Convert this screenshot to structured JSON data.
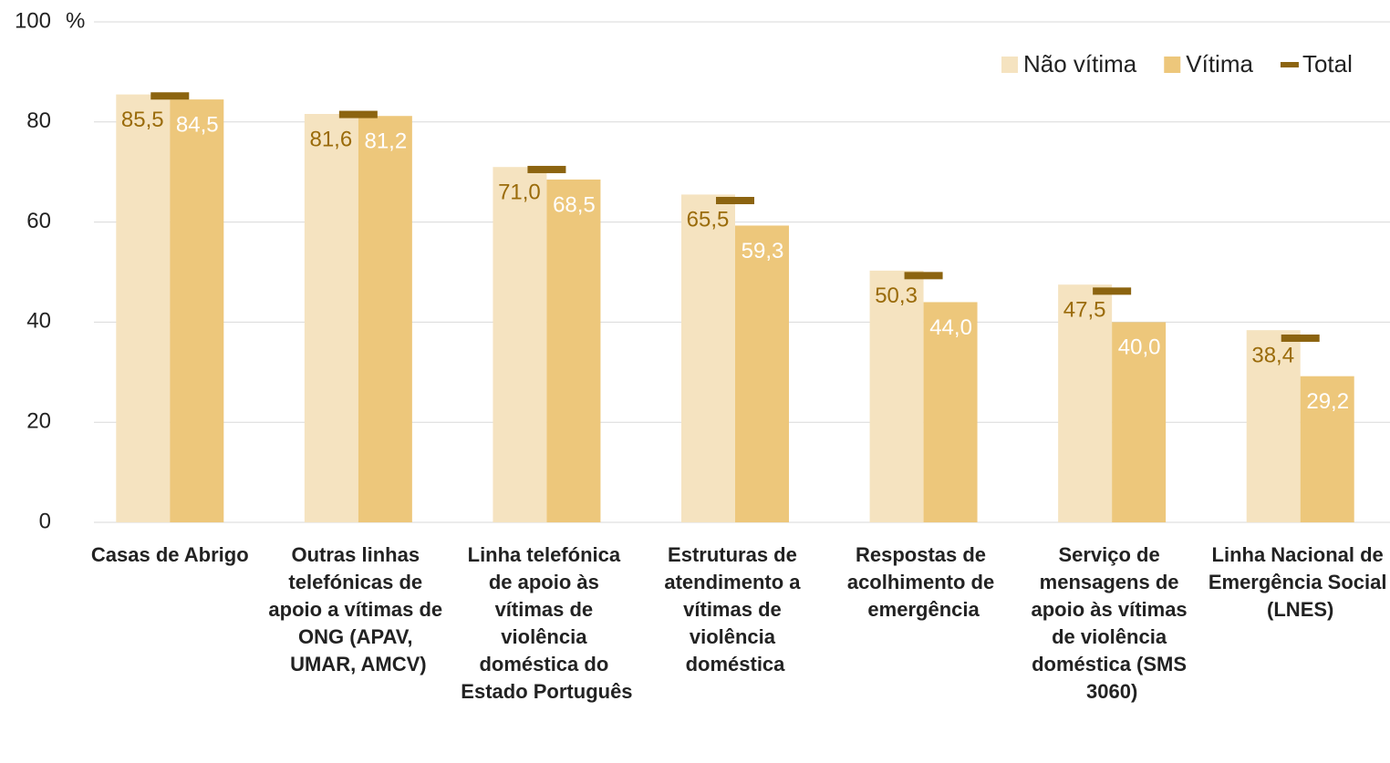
{
  "chart_data": {
    "type": "bar",
    "y_label": "%",
    "categories": [
      "Casas de Abrigo",
      "Outras linhas telefónicas de apoio a vítimas de ONG (APAV, UMAR, AMCV)",
      "Linha telefónica de apoio às vítimas de violência doméstica do Estado Português",
      "Estruturas de atendimento a vítimas de violência doméstica",
      "Respostas de acolhimento de emergência",
      "Serviço de mensagens de apoio às vítimas de violência doméstica (SMS 3060)",
      "Linha Nacional de Emergência Social (LNES)"
    ],
    "series": [
      {
        "name": "Não vítima",
        "color": "#f5e3c0",
        "label_color": "#9a6b0a",
        "values": [
          85.5,
          81.6,
          71.0,
          65.5,
          50.3,
          47.5,
          38.4
        ],
        "value_labels": [
          "85,5",
          "81,6",
          "71,0",
          "65,5",
          "50,3",
          "47,5",
          "38,4"
        ]
      },
      {
        "name": "Vítima",
        "color": "#edc77b",
        "label_color": "#ffffff",
        "values": [
          84.5,
          81.2,
          68.5,
          59.3,
          44.0,
          40.0,
          29.2
        ],
        "value_labels": [
          "84,5",
          "81,2",
          "68,5",
          "59,3",
          "44,0",
          "40,0",
          "29,2"
        ]
      },
      {
        "name": "Total",
        "type": "marker",
        "color": "#8c6410",
        "values": [
          85.2,
          81.5,
          70.5,
          64.3,
          49.3,
          46.2,
          36.8
        ]
      }
    ],
    "ylim": [
      0,
      100
    ],
    "yticks": [
      0,
      20,
      40,
      60,
      80,
      100
    ],
    "grid": true,
    "legend": "top-right"
  }
}
